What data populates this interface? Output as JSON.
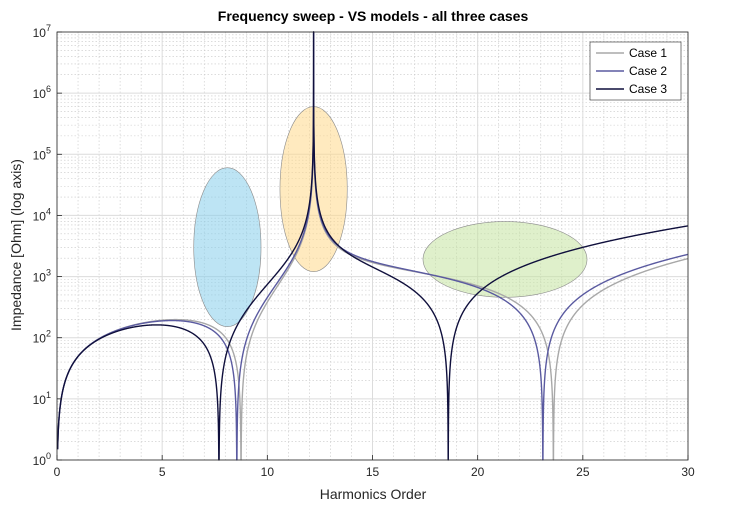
{
  "chart_data": {
    "type": "line",
    "title": "Frequency sweep - VS models - all three cases",
    "xlabel": "Harmonics Order",
    "ylabel": "Impedance [Ohm] (log axis)",
    "xlim": [
      0,
      30
    ],
    "ylim": [
      1,
      10000000
    ],
    "yscale": "log",
    "grid": true,
    "minor_grid": true,
    "legend_position": "top-right",
    "x_ticks": [
      "0",
      "5",
      "10",
      "15",
      "20",
      "25",
      "30"
    ],
    "y_ticks": [
      {
        "base": "10",
        "exp": "0"
      },
      {
        "base": "10",
        "exp": "1"
      },
      {
        "base": "10",
        "exp": "2"
      },
      {
        "base": "10",
        "exp": "3"
      },
      {
        "base": "10",
        "exp": "4"
      },
      {
        "base": "10",
        "exp": "5"
      },
      {
        "base": "10",
        "exp": "6"
      },
      {
        "base": "10",
        "exp": "7"
      }
    ],
    "series": [
      {
        "name": "Case 1",
        "color": "#a8a8a8",
        "series_resonances": [
          8.75,
          23.6
        ],
        "parallel_resonance": 12.2
      },
      {
        "name": "Case 2",
        "color": "#5a5aa0",
        "series_resonances": [
          8.55,
          23.1
        ],
        "parallel_resonance": 12.2
      },
      {
        "name": "Case 3",
        "color": "#0f0f3c",
        "series_resonances": [
          7.7,
          18.6
        ],
        "parallel_resonance": 12.2
      }
    ],
    "highlights": [
      {
        "cx": 8.1,
        "cy_log": 3.48,
        "rx": 1.6,
        "ry_log": 1.3,
        "color": "#87ceeb"
      },
      {
        "cx": 12.2,
        "cy_log": 4.43,
        "rx": 1.6,
        "ry_log": 1.35,
        "color": "#ffd88a"
      },
      {
        "cx": 21.3,
        "cy_log": 3.28,
        "rx": 3.9,
        "ry_log": 0.62,
        "color": "#c5e3a0"
      }
    ]
  }
}
